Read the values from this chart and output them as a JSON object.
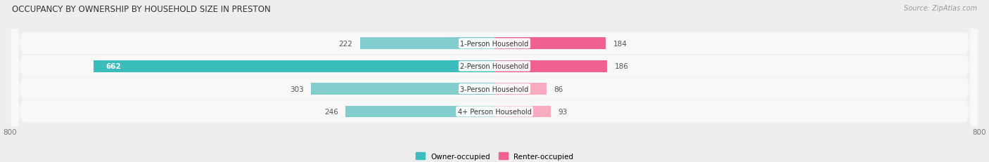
{
  "title": "OCCUPANCY BY OWNERSHIP BY HOUSEHOLD SIZE IN PRESTON",
  "source": "Source: ZipAtlas.com",
  "categories": [
    "1-Person Household",
    "2-Person Household",
    "3-Person Household",
    "4+ Person Household"
  ],
  "owner_values": [
    222,
    662,
    303,
    246
  ],
  "renter_values": [
    184,
    186,
    86,
    93
  ],
  "owner_color_dark": "#3bbcbd",
  "owner_color_light": "#82cece",
  "renter_color_dark": "#f06090",
  "renter_color_light": "#f8aac0",
  "owner_label_threshold": 600,
  "renter_label_threshold": 150,
  "axis_min": -800,
  "axis_max": 800,
  "background_color": "#eeeeee",
  "row_background": "#f8f8f8",
  "title_color": "#333333",
  "label_color": "#555555",
  "axis_label_color": "#777777",
  "legend_owner": "Owner-occupied",
  "legend_renter": "Renter-occupied"
}
